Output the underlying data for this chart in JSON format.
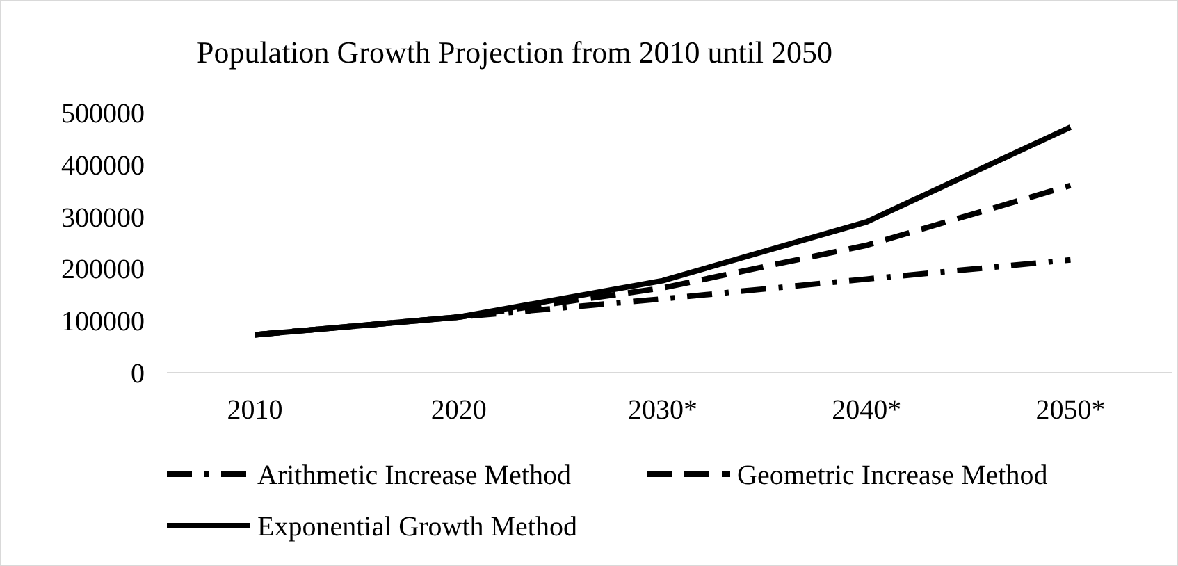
{
  "chart_data": {
    "type": "line",
    "title": "Population Growth Projection from 2010 until 2050",
    "categories": [
      "2010",
      "2020",
      "2030*",
      "2040*",
      "2050*"
    ],
    "series": [
      {
        "name": "Arithmetic Increase Method",
        "color": "#000000",
        "line_style": "dashdot",
        "values": [
          73000,
          107000,
          142000,
          180000,
          217000
        ]
      },
      {
        "name": "Geometric Increase Method",
        "color": "#000000",
        "line_style": "dashed",
        "values": [
          73000,
          107000,
          163000,
          245000,
          360000
        ]
      },
      {
        "name": "Exponential Growth Method",
        "color": "#000000",
        "line_style": "solid",
        "values": [
          73000,
          107000,
          177000,
          290000,
          472000
        ]
      }
    ],
    "ylim": [
      0,
      500000
    ],
    "yticks": [
      0,
      100000,
      200000,
      300000,
      400000,
      500000
    ],
    "grid": false,
    "legend": "bottom"
  }
}
